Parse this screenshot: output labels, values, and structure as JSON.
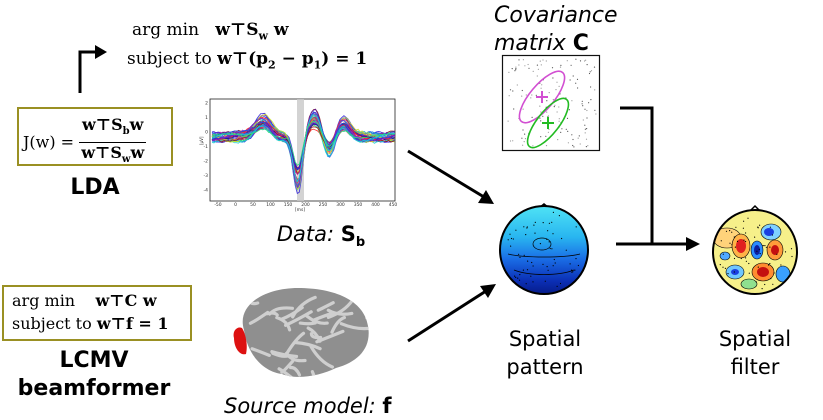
{
  "lda": {
    "argmin_line": "arg min",
    "argmin_expr": "w⊤S",
    "argmin_sub": "w",
    "argmin_tail": " w",
    "subject_to": "subject to",
    "constraint_pre": "w⊤(p",
    "constraint_p2": "2",
    "constraint_mid": " − p",
    "constraint_p1": "1",
    "constraint_post": ") = 1",
    "objective_lhs": "J(w) =",
    "objective_num_pre": "w⊤S",
    "objective_num_sub": "b",
    "objective_num_post": "w",
    "objective_den_pre": "w⊤S",
    "objective_den_sub": "w",
    "objective_den_post": "w",
    "label": "LDA"
  },
  "lcmv": {
    "argmin_line": "arg min",
    "argmin_expr": "w⊤C w",
    "subject_to": "subject to",
    "constraint": "w⊤f = 1",
    "label_line1": "LCMV",
    "label_line2": "beamformer"
  },
  "data_caption": {
    "prefix": "Data: ",
    "symbol": "S",
    "sub": "b"
  },
  "covariance_caption": {
    "line1": "Covariance",
    "line2_prefix": "matrix ",
    "symbol": "C"
  },
  "source_caption": {
    "prefix": "Source model: ",
    "symbol": "f"
  },
  "spatial_pattern": {
    "line1": "Spatial",
    "line2": "pattern"
  },
  "spatial_filter": {
    "line1": "Spatial",
    "line2": "filter"
  },
  "erp_plot": {
    "x_ticks": [
      "-50",
      "0",
      "50",
      "100",
      "150",
      "200",
      "250",
      "300",
      "350",
      "400",
      "450"
    ],
    "y_ticks": [
      "2",
      "1",
      "0",
      "-1",
      "-2",
      "-3",
      "-4"
    ],
    "x_unit": "[ms]",
    "y_unit": "[µV]"
  },
  "colors": {
    "box_border": "#9a9023",
    "arrow": "#000000",
    "covariance_class1": "#d24fd2",
    "covariance_class2": "#22bb22",
    "cortex_highlight": "#dd1111"
  },
  "icons": [
    "arrow-icon",
    "brain-icon",
    "scalp-topography-icon",
    "scatter-plot-icon"
  ]
}
